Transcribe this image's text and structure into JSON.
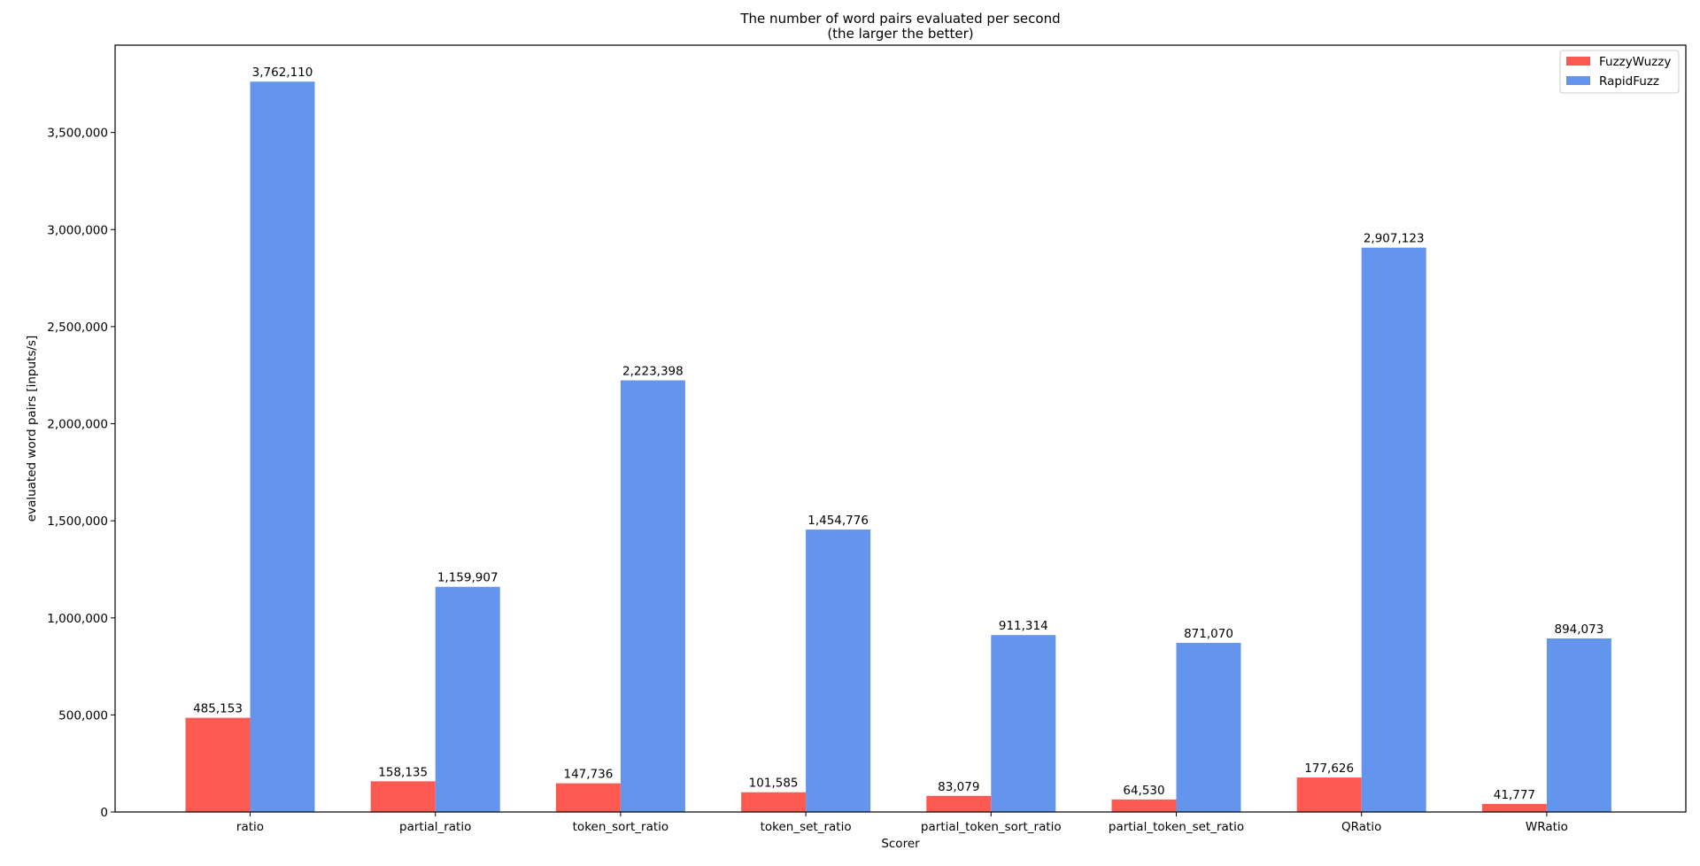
{
  "chart_data": {
    "type": "bar",
    "title": "The number of word pairs evaluated per second",
    "subtitle": "(the larger the better)",
    "xlabel": "Scorer",
    "ylabel": "evaluated word pairs [inputs/s]",
    "ylim": [
      0,
      3950000
    ],
    "yticks": [
      0,
      500000,
      1000000,
      1500000,
      2000000,
      2500000,
      3000000,
      3500000
    ],
    "ytick_labels": [
      "0",
      "500,000",
      "1,000,000",
      "1,500,000",
      "2,000,000",
      "2,500,000",
      "3,000,000",
      "3,500,000"
    ],
    "categories": [
      "ratio",
      "partial_ratio",
      "token_sort_ratio",
      "token_set_ratio",
      "partial_token_sort_ratio",
      "partial_token_set_ratio",
      "QRatio",
      "WRatio"
    ],
    "series": [
      {
        "name": "FuzzyWuzzy",
        "color": "#ff5a52",
        "values": [
          485153,
          158135,
          147736,
          101585,
          83079,
          64530,
          177626,
          41777
        ],
        "labels": [
          "485,153",
          "158,135",
          "147,736",
          "101,585",
          "83,079",
          "64,530",
          "177,626",
          "41,777"
        ]
      },
      {
        "name": "RapidFuzz",
        "color": "#6495ed",
        "values": [
          3762110,
          1159907,
          2223398,
          1454776,
          911314,
          871070,
          2907123,
          894073
        ],
        "labels": [
          "3,762,110",
          "1,159,907",
          "2,223,398",
          "1,454,776",
          "911,314",
          "871,070",
          "2,907,123",
          "894,073"
        ]
      }
    ],
    "legend_position": "top-right",
    "grid": false
  }
}
